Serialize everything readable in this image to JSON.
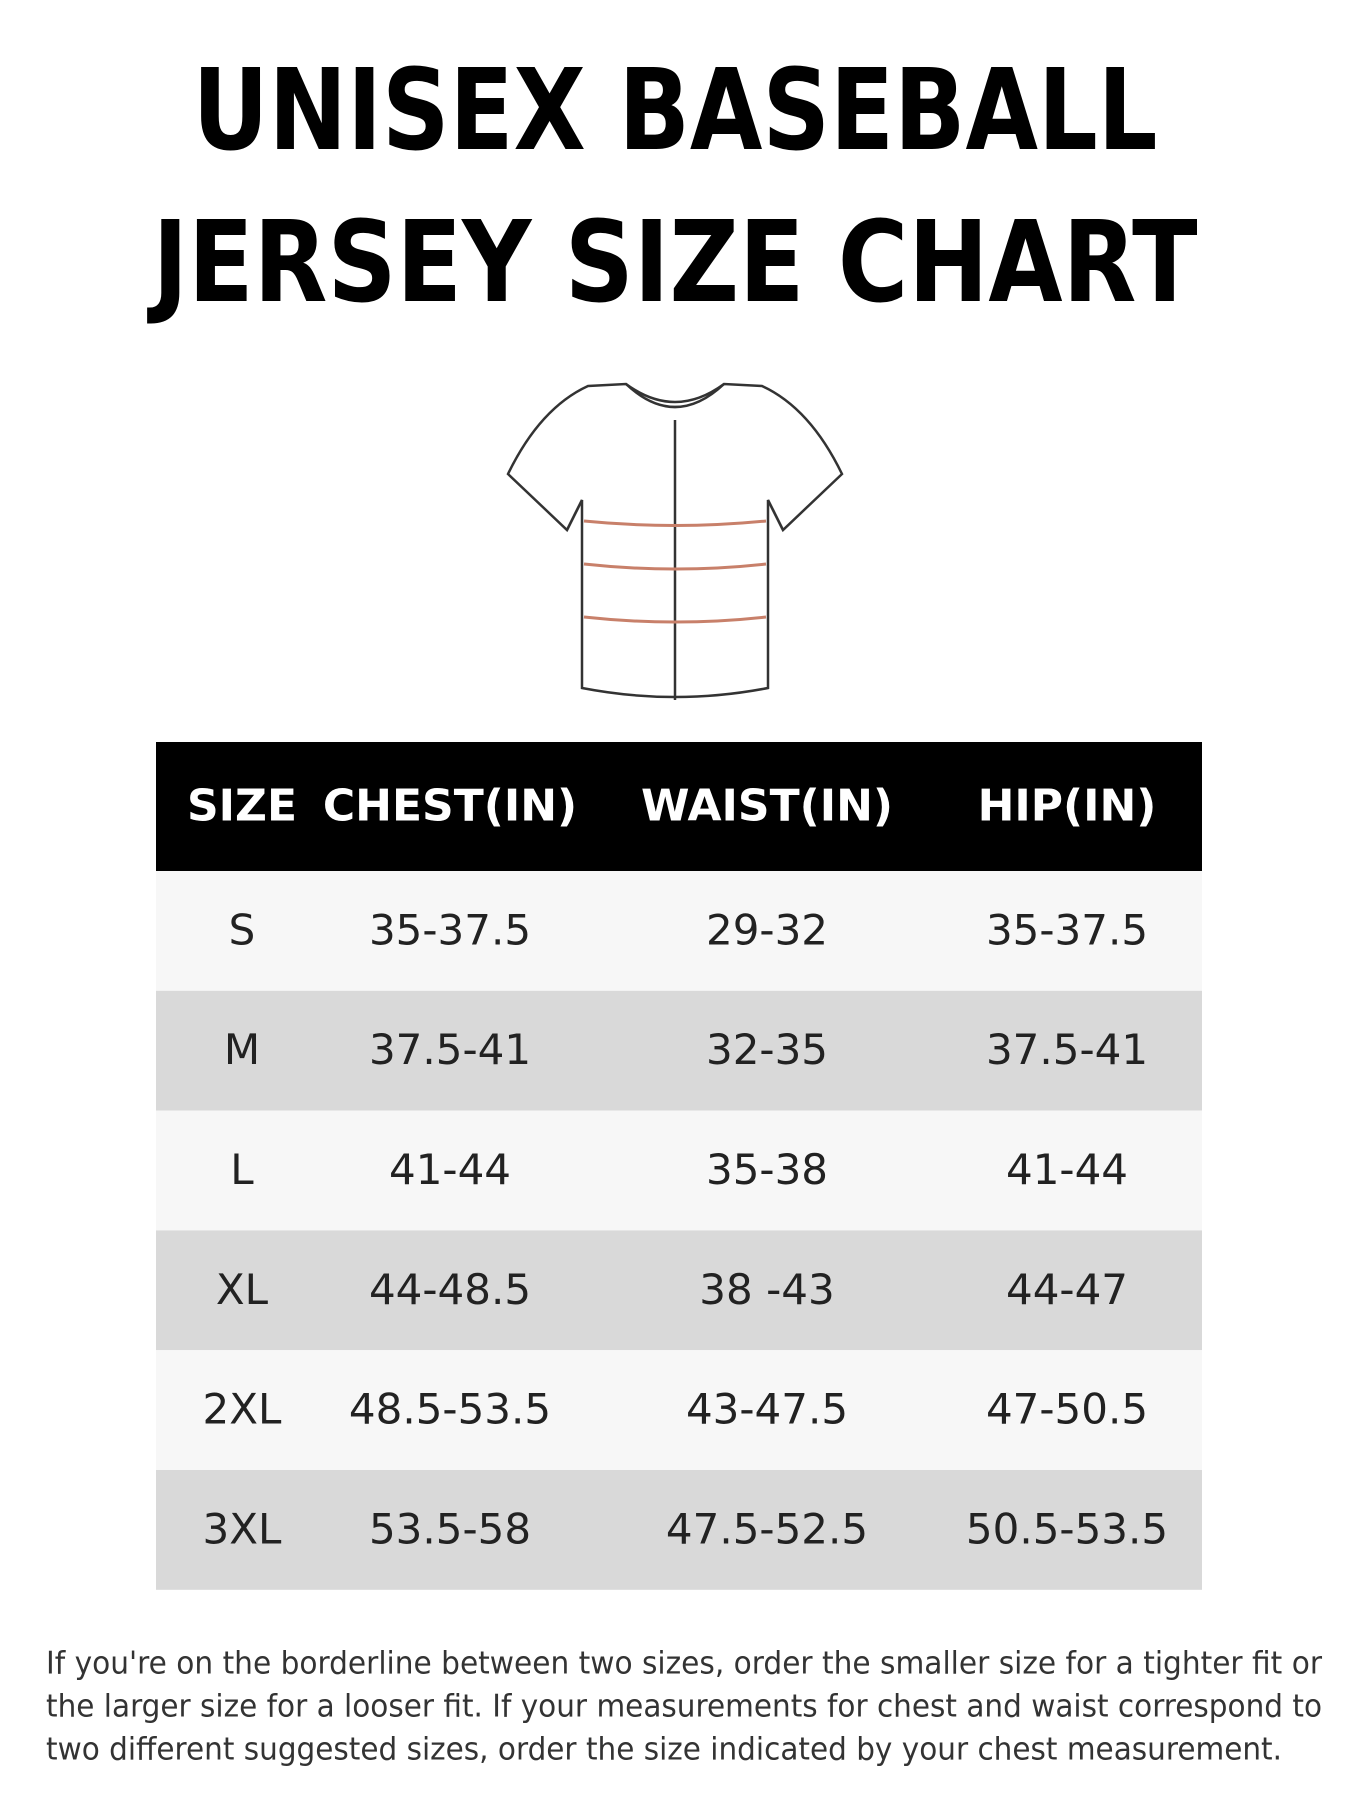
{
  "header": {
    "title": [
      "UNISEX BASEBALL",
      "JERSEY SIZE CHART"
    ]
  },
  "table": {
    "columns": [
      "SIZE",
      "CHEST(IN)",
      "WAIST(IN)",
      "HIP(IN)"
    ],
    "rows": [
      [
        "S",
        "35-37.5",
        "29-32",
        "35-37.5"
      ],
      [
        "M",
        "37.5-41",
        "32-35",
        "37.5-41"
      ],
      [
        "L",
        "41-44",
        "35-38",
        "41-44"
      ],
      [
        "XL",
        "44-48.5",
        "38 -43",
        "44-47"
      ],
      [
        "2XL",
        "48.5-53.5",
        "43-47.5",
        "47-50.5"
      ],
      [
        "3XL",
        "53.5-58",
        "47.5-52.5",
        "50.5-53.5"
      ]
    ]
  },
  "note": {
    "lines": [
      "If you're on the borderline between two sizes, order the smaller size for a tighter fit or",
      "the larger size for a looser fit. If your measurements for chest and waist correspond to",
      "two different suggested sizes, order the size indicated by your chest measurement."
    ]
  }
}
